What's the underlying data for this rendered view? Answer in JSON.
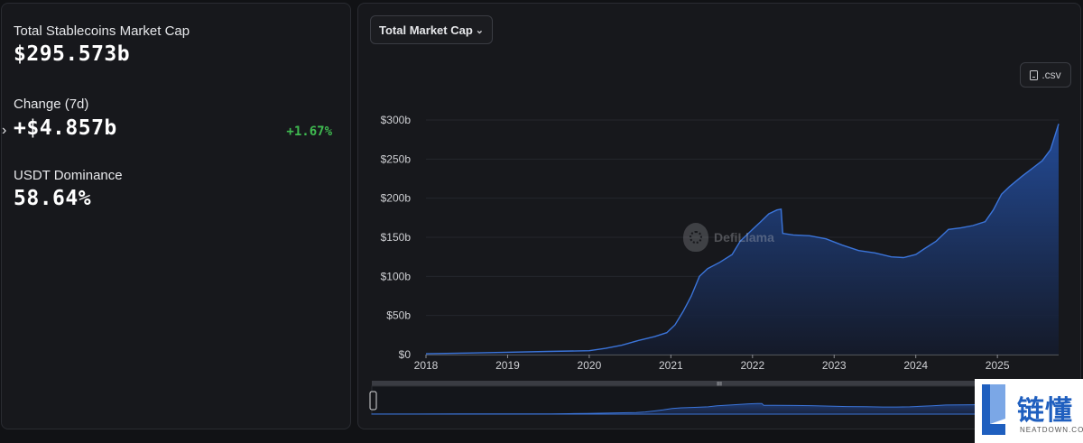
{
  "stats": {
    "market_cap_label": "Total Stablecoins Market Cap",
    "market_cap_value": "$295.573b",
    "change_label": "Change (7d)",
    "change_value": "+$4.857b",
    "change_pct": "+1.67%",
    "dominance_label": "USDT Dominance",
    "dominance_value": "58.64%"
  },
  "controls": {
    "metric_select": "Total Market Cap",
    "csv_label": ".csv"
  },
  "watermark": "DefiLlama",
  "badge": {
    "title": "链懂",
    "subtitle": "NEATDOWN.COM"
  },
  "colors": {
    "line": "#3b74d9",
    "fill_top": "#244e9e",
    "fill_bottom": "#141a2a",
    "positive": "#3fb950"
  },
  "chart_data": {
    "type": "area",
    "title": "",
    "xlabel": "",
    "ylabel": "",
    "ylim": [
      0,
      300
    ],
    "xlim": [
      2018.0,
      2025.75
    ],
    "yticks": [
      "$0",
      "$50b",
      "$100b",
      "$150b",
      "$200b",
      "$250b",
      "$300b"
    ],
    "ytick_values": [
      0,
      50,
      100,
      150,
      200,
      250,
      300
    ],
    "xticks": [
      "2018",
      "2019",
      "2020",
      "2021",
      "2022",
      "2023",
      "2024",
      "2025"
    ],
    "xtick_values": [
      2018,
      2019,
      2020,
      2021,
      2022,
      2023,
      2024,
      2025
    ],
    "grid": true,
    "series": [
      {
        "x": [
          2018.0,
          2018.5,
          2019.0,
          2019.5,
          2020.0,
          2020.2,
          2020.4,
          2020.6,
          2020.8,
          2020.95,
          2021.05,
          2021.15,
          2021.25,
          2021.35,
          2021.45,
          2021.6,
          2021.75,
          2021.85,
          2022.0,
          2022.1,
          2022.2,
          2022.3,
          2022.35,
          2022.37,
          2022.5,
          2022.7,
          2022.9,
          2023.1,
          2023.3,
          2023.5,
          2023.7,
          2023.85,
          2024.0,
          2024.1,
          2024.25,
          2024.4,
          2024.55,
          2024.7,
          2024.85,
          2024.95,
          2025.05,
          2025.15,
          2025.3,
          2025.45,
          2025.55,
          2025.65,
          2025.75
        ],
        "values": [
          1,
          2,
          3,
          4,
          5,
          8,
          12,
          18,
          23,
          28,
          38,
          55,
          75,
          100,
          110,
          118,
          128,
          145,
          160,
          170,
          180,
          185,
          186,
          155,
          153,
          152,
          148,
          140,
          133,
          130,
          125,
          124,
          128,
          135,
          145,
          160,
          162,
          165,
          170,
          185,
          205,
          215,
          228,
          240,
          248,
          262,
          295
        ]
      }
    ]
  }
}
